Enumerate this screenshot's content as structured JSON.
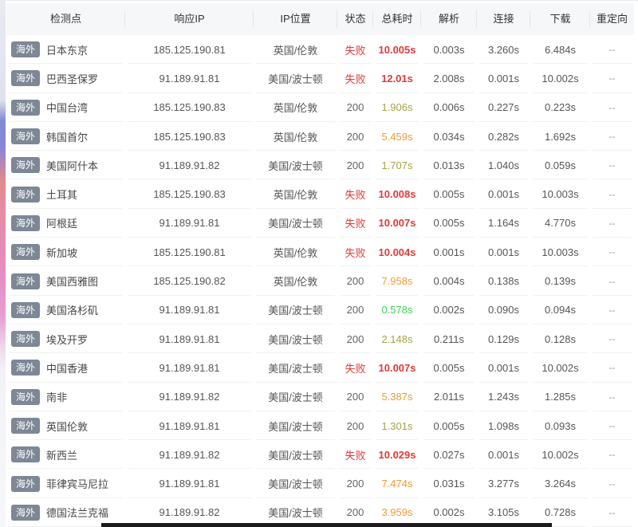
{
  "table": {
    "columns": [
      {
        "key": "node",
        "label": "检测点"
      },
      {
        "key": "ip",
        "label": "响应IP"
      },
      {
        "key": "ip_location",
        "label": "IP位置"
      },
      {
        "key": "status",
        "label": "状态"
      },
      {
        "key": "total",
        "label": "总耗时"
      },
      {
        "key": "dns",
        "label": "解析"
      },
      {
        "key": "connect",
        "label": "连接"
      },
      {
        "key": "download",
        "label": "下载"
      },
      {
        "key": "redirect",
        "label": "重定向"
      }
    ],
    "rows": [
      {
        "badge": "海外",
        "node": "日本东京",
        "ip": "185.125.190.81",
        "ip_location": "英国/伦敦",
        "status": "失败",
        "status_type": "fail",
        "total": "10.005s",
        "total_color": "red",
        "dns": "0.003s",
        "connect": "3.260s",
        "download": "6.484s",
        "redirect": "--"
      },
      {
        "badge": "海外",
        "node": "巴西圣保罗",
        "ip": "91.189.91.81",
        "ip_location": "美国/波士顿",
        "status": "失败",
        "status_type": "fail",
        "total": "12.01s",
        "total_color": "red",
        "dns": "2.008s",
        "connect": "0.001s",
        "download": "10.002s",
        "redirect": "--"
      },
      {
        "badge": "海外",
        "node": "中国台湾",
        "ip": "185.125.190.83",
        "ip_location": "英国/伦敦",
        "status": "200",
        "status_type": "ok",
        "total": "1.906s",
        "total_color": "olive",
        "dns": "0.006s",
        "connect": "0.227s",
        "download": "0.223s",
        "redirect": "--"
      },
      {
        "badge": "海外",
        "node": "韩国首尔",
        "ip": "185.125.190.83",
        "ip_location": "英国/伦敦",
        "status": "200",
        "status_type": "ok",
        "total": "5.459s",
        "total_color": "orange",
        "dns": "0.034s",
        "connect": "0.282s",
        "download": "1.692s",
        "redirect": "--"
      },
      {
        "badge": "海外",
        "node": "美国阿什本",
        "ip": "91.189.91.82",
        "ip_location": "美国/波士顿",
        "status": "200",
        "status_type": "ok",
        "total": "1.707s",
        "total_color": "olive",
        "dns": "0.013s",
        "connect": "1.040s",
        "download": "0.059s",
        "redirect": "--"
      },
      {
        "badge": "海外",
        "node": "土耳其",
        "ip": "185.125.190.83",
        "ip_location": "英国/伦敦",
        "status": "失败",
        "status_type": "fail",
        "total": "10.008s",
        "total_color": "red",
        "dns": "0.005s",
        "connect": "0.001s",
        "download": "10.003s",
        "redirect": "--"
      },
      {
        "badge": "海外",
        "node": "阿根廷",
        "ip": "91.189.91.81",
        "ip_location": "美国/波士顿",
        "status": "失败",
        "status_type": "fail",
        "total": "10.007s",
        "total_color": "red",
        "dns": "0.005s",
        "connect": "1.164s",
        "download": "4.770s",
        "redirect": "--"
      },
      {
        "badge": "海外",
        "node": "新加坡",
        "ip": "185.125.190.81",
        "ip_location": "英国/伦敦",
        "status": "失败",
        "status_type": "fail",
        "total": "10.004s",
        "total_color": "red",
        "dns": "0.001s",
        "connect": "0.001s",
        "download": "10.003s",
        "redirect": "--"
      },
      {
        "badge": "海外",
        "node": "美国西雅图",
        "ip": "185.125.190.82",
        "ip_location": "英国/伦敦",
        "status": "200",
        "status_type": "ok",
        "total": "7.958s",
        "total_color": "orange",
        "dns": "0.004s",
        "connect": "0.138s",
        "download": "0.139s",
        "redirect": "--"
      },
      {
        "badge": "海外",
        "node": "美国洛杉矶",
        "ip": "91.189.91.81",
        "ip_location": "美国/波士顿",
        "status": "200",
        "status_type": "ok",
        "total": "0.578s",
        "total_color": "green",
        "dns": "0.002s",
        "connect": "0.090s",
        "download": "0.094s",
        "redirect": "--"
      },
      {
        "badge": "海外",
        "node": "埃及开罗",
        "ip": "91.189.91.81",
        "ip_location": "美国/波士顿",
        "status": "200",
        "status_type": "ok",
        "total": "2.148s",
        "total_color": "olive",
        "dns": "0.211s",
        "connect": "0.129s",
        "download": "0.128s",
        "redirect": "--"
      },
      {
        "badge": "海外",
        "node": "中国香港",
        "ip": "91.189.91.81",
        "ip_location": "美国/波士顿",
        "status": "失败",
        "status_type": "fail",
        "total": "10.007s",
        "total_color": "red",
        "dns": "0.005s",
        "connect": "0.001s",
        "download": "10.002s",
        "redirect": "--"
      },
      {
        "badge": "海外",
        "node": "南非",
        "ip": "91.189.91.82",
        "ip_location": "美国/波士顿",
        "status": "200",
        "status_type": "ok",
        "total": "5.387s",
        "total_color": "orange",
        "dns": "2.011s",
        "connect": "1.243s",
        "download": "1.285s",
        "redirect": "--"
      },
      {
        "badge": "海外",
        "node": "英国伦敦",
        "ip": "91.189.91.81",
        "ip_location": "美国/波士顿",
        "status": "200",
        "status_type": "ok",
        "total": "1.301s",
        "total_color": "olive",
        "dns": "0.005s",
        "connect": "1.098s",
        "download": "0.093s",
        "redirect": "--"
      },
      {
        "badge": "海外",
        "node": "新西兰",
        "ip": "91.189.91.82",
        "ip_location": "美国/波士顿",
        "status": "失败",
        "status_type": "fail",
        "total": "10.029s",
        "total_color": "red",
        "dns": "0.027s",
        "connect": "0.001s",
        "download": "10.002s",
        "redirect": "--"
      },
      {
        "badge": "海外",
        "node": "菲律宾马尼拉",
        "ip": "91.189.91.81",
        "ip_location": "美国/波士顿",
        "status": "200",
        "status_type": "ok",
        "total": "7.474s",
        "total_color": "orange",
        "dns": "0.031s",
        "connect": "3.277s",
        "download": "3.264s",
        "redirect": "--"
      },
      {
        "badge": "海外",
        "node": "德国法兰克福",
        "ip": "91.189.91.82",
        "ip_location": "美国/波士顿",
        "status": "200",
        "status_type": "ok",
        "total": "3.959s",
        "total_color": "orange",
        "dns": "0.002s",
        "connect": "3.105s",
        "download": "0.728s",
        "redirect": "--"
      }
    ]
  },
  "colors": {
    "fail_red": "#e03a3a",
    "slow_orange": "#f19b38",
    "medium_olive": "#a6a344",
    "fast_green": "#3ed058",
    "badge_bg": "#7d8795",
    "header_bg": "#f6f7f9"
  }
}
